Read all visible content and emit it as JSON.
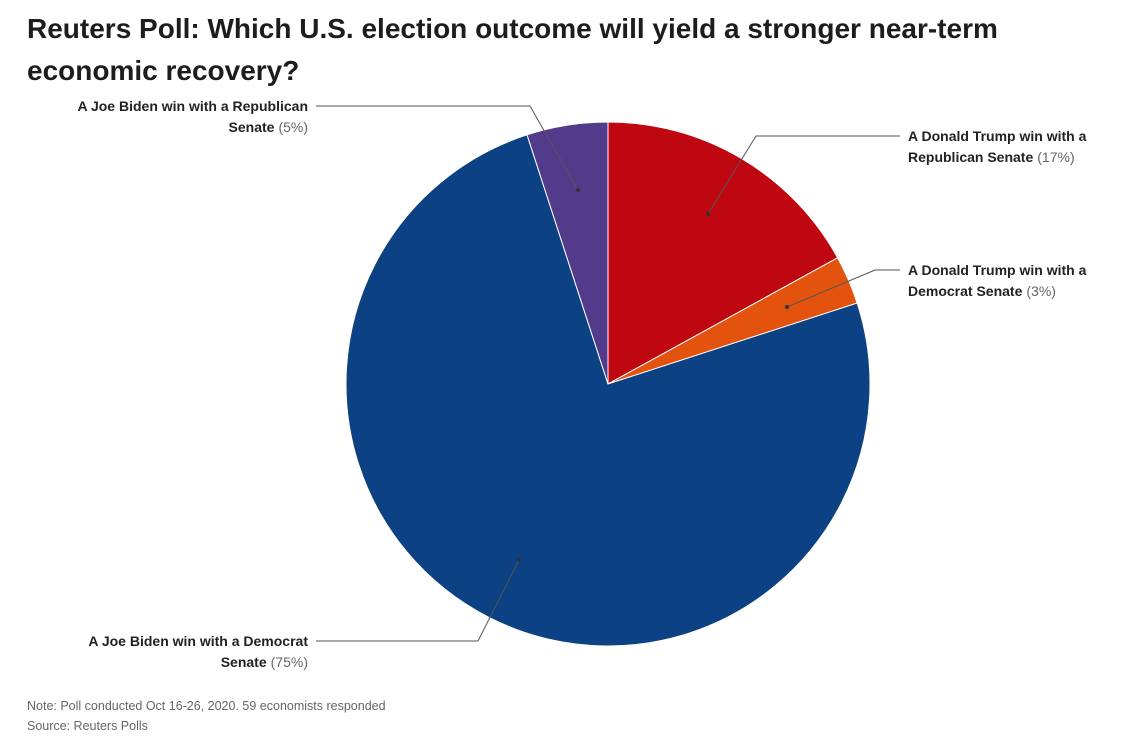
{
  "title": "Reuters Poll: Which U.S. election outcome will yield a stronger near-term economic recovery?",
  "note": "Note: Poll conducted Oct 16-26, 2020. 59 economists responded",
  "source": "Source: Reuters Polls",
  "chart_data": {
    "type": "pie",
    "slices": [
      {
        "label_lines": [
          "A Donald Trump win with a",
          "Republican Senate"
        ],
        "pct_label": "(17%)",
        "value": 17,
        "color": "#bf0711"
      },
      {
        "label_lines": [
          "A Donald Trump win with a",
          "Democrat Senate"
        ],
        "pct_label": "(3%)",
        "value": 3,
        "color": "#e4530e"
      },
      {
        "label_lines": [
          "A Joe Biden win with a Democrat",
          "Senate"
        ],
        "pct_label": "(75%)",
        "value": 75,
        "color": "#0c4183"
      },
      {
        "label_lines": [
          "A Joe Biden win with a Republican",
          "Senate"
        ],
        "pct_label": "(5%)",
        "value": 5,
        "color": "#523b8b"
      }
    ]
  }
}
